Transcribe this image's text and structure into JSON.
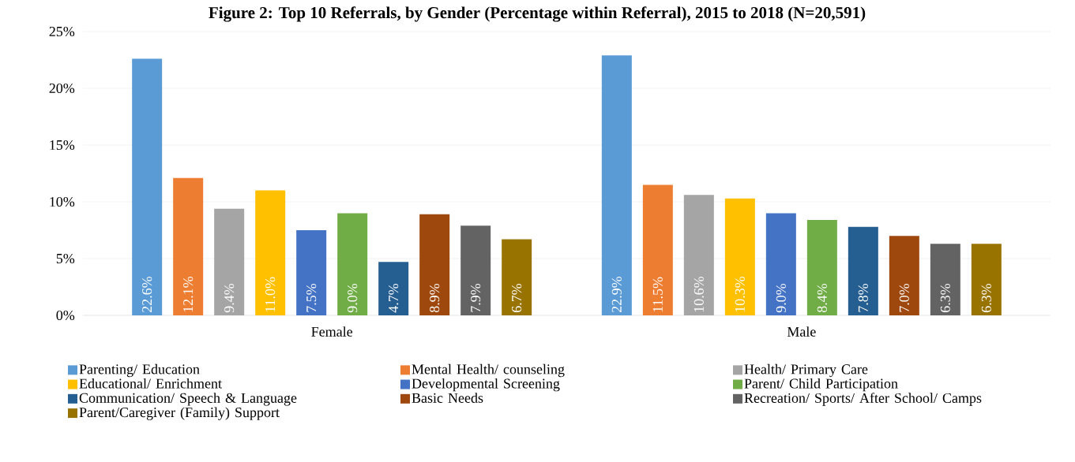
{
  "chart_data": {
    "type": "bar",
    "title": "Figure 2: Top 10 Referrals, by Gender (Percentage within Referral), 2015 to 2018 (N=20,591)",
    "categories": [
      "Female",
      "Male"
    ],
    "series": [
      {
        "name": "Parenting/ Education",
        "color": "#5b9bd5",
        "values": [
          22.6,
          22.9
        ],
        "value_labels": [
          "22.6%",
          "22.9%"
        ]
      },
      {
        "name": "Mental Health/ counseling",
        "color": "#ed7d31",
        "values": [
          12.1,
          11.5
        ],
        "value_labels": [
          "12.1%",
          "11.5%"
        ]
      },
      {
        "name": "Health/ Primary Care",
        "color": "#a5a5a5",
        "values": [
          9.4,
          10.6
        ],
        "value_labels": [
          "9.4%",
          "10.6%"
        ]
      },
      {
        "name": "Educational/ Enrichment",
        "color": "#ffc000",
        "values": [
          11.0,
          10.3
        ],
        "value_labels": [
          "11.0%",
          "10.3%"
        ]
      },
      {
        "name": "Developmental Screening",
        "color": "#4472c4",
        "values": [
          7.5,
          9.0
        ],
        "value_labels": [
          "7.5%",
          "9.0%"
        ]
      },
      {
        "name": "Parent/ Child Participation",
        "color": "#70ad47",
        "values": [
          9.0,
          8.4
        ],
        "value_labels": [
          "9.0%",
          "8.4%"
        ]
      },
      {
        "name": "Communication/ Speech & Language",
        "color": "#255e91",
        "values": [
          4.7,
          7.8
        ],
        "value_labels": [
          "4.7%",
          "7.8%"
        ]
      },
      {
        "name": "Basic Needs",
        "color": "#9e480e",
        "values": [
          8.9,
          7.0
        ],
        "value_labels": [
          "8.9%",
          "7.0%"
        ]
      },
      {
        "name": "Recreation/ Sports/ After School/ Camps",
        "color": "#636363",
        "values": [
          7.9,
          6.3
        ],
        "value_labels": [
          "7.9%",
          "6.3%"
        ]
      },
      {
        "name": "Parent/Caregiver (Family) Support",
        "color": "#997300",
        "values": [
          6.7,
          6.3
        ],
        "value_labels": [
          "6.7%",
          "6.3%"
        ]
      }
    ],
    "ylim": [
      0,
      25
    ],
    "yticks": [
      {
        "value": 0,
        "label": "0%"
      },
      {
        "value": 5,
        "label": "5%"
      },
      {
        "value": 10,
        "label": "10%"
      },
      {
        "value": 15,
        "label": "15%"
      },
      {
        "value": 20,
        "label": "20%"
      },
      {
        "value": 25,
        "label": "25%"
      }
    ],
    "grid": "y",
    "legend": "bottom"
  }
}
